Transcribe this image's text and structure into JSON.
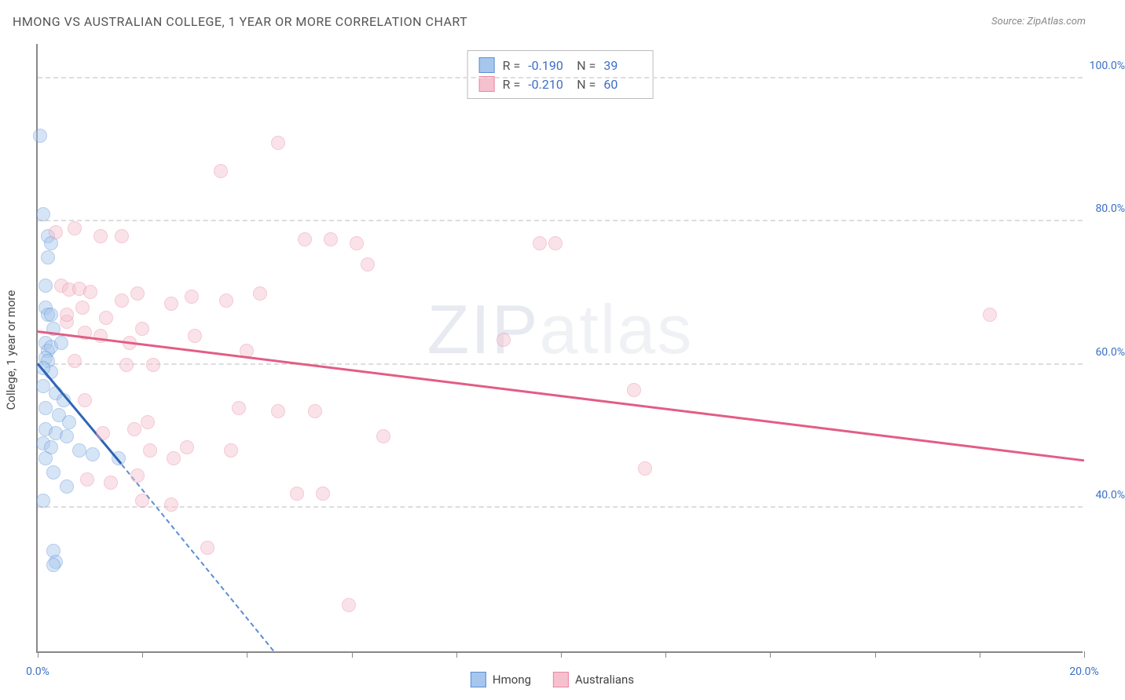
{
  "title": "HMONG VS AUSTRALIAN COLLEGE, 1 YEAR OR MORE CORRELATION CHART",
  "source": "Source: ZipAtlas.com",
  "watermark": {
    "bold": "ZIP",
    "light": "atlas"
  },
  "chart": {
    "type": "scatter",
    "background_color": "#ffffff",
    "grid_color": "#dddddd",
    "axis_color": "#888888",
    "xlim": [
      0,
      20
    ],
    "ylim": [
      20,
      105
    ],
    "x_ticks": [
      0,
      2,
      4,
      6,
      8,
      10,
      12,
      14,
      16,
      18,
      20
    ],
    "x_tick_labels": {
      "0": "0.0%",
      "20": "20.0%"
    },
    "y_ticks": [
      40,
      60,
      80,
      100
    ],
    "y_tick_labels": {
      "40": "40.0%",
      "60": "60.0%",
      "80": "80.0%",
      "100": "100.0%"
    },
    "y_title": "College, 1 year or more",
    "title_fontsize": 16,
    "label_fontsize": 14,
    "label_color": "#3b6fc4",
    "marker_radius": 9,
    "marker_opacity": 0.45,
    "series": [
      {
        "name": "Hmong",
        "key": "hmong",
        "fill": "#a6c6ec",
        "stroke": "#5a8fd6",
        "line_color": "#2f64b6",
        "R": "-0.190",
        "N": "39",
        "trend": {
          "x1": 0.0,
          "y1": 60.0,
          "x2": 1.6,
          "y2": 46.0,
          "dash_to_x": 4.5,
          "dash_to_y": 20.0
        },
        "points": [
          [
            0.05,
            92
          ],
          [
            0.1,
            81
          ],
          [
            0.2,
            78
          ],
          [
            0.25,
            77
          ],
          [
            0.2,
            75
          ],
          [
            0.15,
            71
          ],
          [
            0.15,
            68
          ],
          [
            0.2,
            67
          ],
          [
            0.25,
            67
          ],
          [
            0.3,
            65
          ],
          [
            0.15,
            63
          ],
          [
            0.2,
            62
          ],
          [
            0.25,
            62.5
          ],
          [
            0.15,
            61
          ],
          [
            0.2,
            60.5
          ],
          [
            0.25,
            59
          ],
          [
            0.1,
            57
          ],
          [
            0.35,
            56
          ],
          [
            0.5,
            55
          ],
          [
            0.15,
            54
          ],
          [
            0.4,
            53
          ],
          [
            0.6,
            52
          ],
          [
            0.15,
            51
          ],
          [
            0.35,
            50.5
          ],
          [
            0.55,
            50
          ],
          [
            0.1,
            49
          ],
          [
            0.25,
            48.5
          ],
          [
            0.8,
            48
          ],
          [
            1.05,
            47.5
          ],
          [
            0.15,
            47
          ],
          [
            1.55,
            47
          ],
          [
            0.3,
            45
          ],
          [
            0.55,
            43
          ],
          [
            0.1,
            41
          ],
          [
            0.3,
            34
          ],
          [
            0.35,
            32.5
          ],
          [
            0.3,
            32
          ],
          [
            0.1,
            59.5
          ],
          [
            0.45,
            63
          ]
        ]
      },
      {
        "name": "Australians",
        "key": "australians",
        "fill": "#f6c1cf",
        "stroke": "#e986a3",
        "line_color": "#e25d85",
        "R": "-0.210",
        "N": "60",
        "trend": {
          "x1": 0.0,
          "y1": 64.5,
          "x2": 20.0,
          "y2": 46.5
        },
        "points": [
          [
            4.6,
            91
          ],
          [
            3.5,
            87
          ],
          [
            0.35,
            78.5
          ],
          [
            0.7,
            79
          ],
          [
            1.2,
            78
          ],
          [
            1.6,
            78
          ],
          [
            5.1,
            77.5
          ],
          [
            5.6,
            77.5
          ],
          [
            6.1,
            77
          ],
          [
            9.6,
            77
          ],
          [
            9.9,
            77
          ],
          [
            6.3,
            74
          ],
          [
            0.45,
            71
          ],
          [
            0.6,
            70.5
          ],
          [
            0.8,
            70.6
          ],
          [
            1.0,
            70.2
          ],
          [
            1.6,
            69
          ],
          [
            1.9,
            70
          ],
          [
            2.55,
            68.5
          ],
          [
            2.95,
            69.5
          ],
          [
            3.6,
            69
          ],
          [
            4.25,
            70
          ],
          [
            18.2,
            67
          ],
          [
            0.55,
            66
          ],
          [
            0.9,
            64.5
          ],
          [
            1.2,
            64
          ],
          [
            1.75,
            63
          ],
          [
            8.9,
            63.5
          ],
          [
            0.7,
            60.5
          ],
          [
            1.7,
            60
          ],
          [
            2.2,
            60
          ],
          [
            11.4,
            56.5
          ],
          [
            0.9,
            55
          ],
          [
            3.85,
            54
          ],
          [
            4.6,
            53.5
          ],
          [
            5.3,
            53.5
          ],
          [
            2.1,
            52
          ],
          [
            1.25,
            50.5
          ],
          [
            1.85,
            51
          ],
          [
            6.6,
            50
          ],
          [
            2.15,
            48
          ],
          [
            2.6,
            47
          ],
          [
            2.85,
            48.5
          ],
          [
            3.7,
            48
          ],
          [
            11.6,
            45.5
          ],
          [
            0.95,
            44
          ],
          [
            1.4,
            43.5
          ],
          [
            1.9,
            44.5
          ],
          [
            4.95,
            42
          ],
          [
            5.45,
            42
          ],
          [
            2.0,
            41
          ],
          [
            2.55,
            40.5
          ],
          [
            3.25,
            34.5
          ],
          [
            5.95,
            26.5
          ],
          [
            0.55,
            67
          ],
          [
            0.85,
            68
          ],
          [
            1.3,
            66.5
          ],
          [
            2.0,
            65
          ],
          [
            3.0,
            64
          ],
          [
            4.0,
            62
          ]
        ]
      }
    ]
  },
  "legend_bottom": [
    {
      "label": "Hmong",
      "fill": "#a6c6ec",
      "stroke": "#5a8fd6"
    },
    {
      "label": "Australians",
      "fill": "#f6c1cf",
      "stroke": "#e986a3"
    }
  ]
}
